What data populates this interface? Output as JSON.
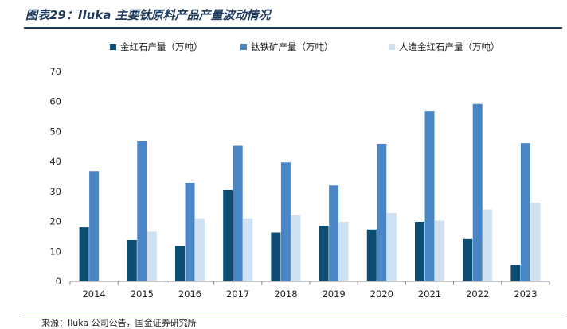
{
  "figure": {
    "title": "图表29：Iluka 主要钛原料产品产量波动情况",
    "source": "来源：Iluka 公司公告，国金证券研究所"
  },
  "chart_data": {
    "type": "bar",
    "categories": [
      "2014",
      "2015",
      "2016",
      "2017",
      "2018",
      "2019",
      "2020",
      "2021",
      "2022",
      "2023"
    ],
    "series": [
      {
        "name": "金红石产量（万吨）",
        "color": "#0b4d73",
        "values": [
          18,
          13.8,
          11.8,
          30.5,
          16.3,
          18.5,
          17.3,
          19.9,
          14.1,
          5.5
        ]
      },
      {
        "name": "钛铁矿产量（万吨）",
        "color": "#4a85c5",
        "values": [
          36.8,
          46.7,
          32.9,
          45.2,
          39.7,
          32,
          45.9,
          56.7,
          59.2,
          46.1
        ]
      },
      {
        "name": "人造金红石产量（万吨）",
        "color": "#cfe1f3",
        "values": [
          0,
          16.6,
          21,
          21,
          22,
          19.9,
          22.8,
          20.3,
          24,
          26.3
        ]
      }
    ],
    "ylim": [
      0,
      70
    ],
    "yticks": [
      0,
      10,
      20,
      30,
      40,
      50,
      60,
      70
    ],
    "xlabel": "",
    "ylabel": "",
    "legend_position": "top",
    "grid": false
  }
}
